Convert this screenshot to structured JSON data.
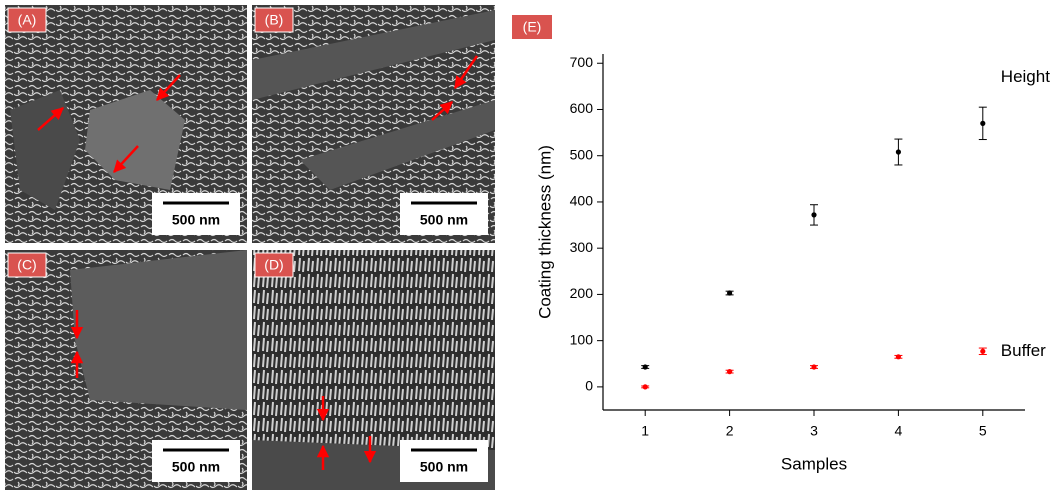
{
  "panels": [
    {
      "label": "(A)",
      "scale_bar": "500 nm"
    },
    {
      "label": "(B)",
      "scale_bar": "500 nm"
    },
    {
      "label": "(C)",
      "scale_bar": "500 nm"
    },
    {
      "label": "(D)",
      "scale_bar": "500 nm"
    }
  ],
  "chart_data": {
    "type": "scatter",
    "panel_label": "(E)",
    "xlabel": "Samples",
    "ylabel": "Coating thickness (nm)",
    "x": [
      1,
      2,
      3,
      4,
      5
    ],
    "series": [
      {
        "name": "Height",
        "color": "#000000",
        "values": [
          43,
          203,
          372,
          508,
          570
        ],
        "errors": [
          3,
          4,
          22,
          28,
          35
        ]
      },
      {
        "name": "Buffer",
        "color": "#ff0000",
        "values": [
          0,
          33,
          43,
          65,
          77
        ],
        "errors": [
          2,
          3,
          3,
          3,
          7
        ]
      }
    ],
    "xlim": [
      0.5,
      5.5
    ],
    "ylim": [
      -50,
      720
    ],
    "xticks": [
      1,
      2,
      3,
      4,
      5
    ],
    "yticks": [
      0,
      100,
      200,
      300,
      400,
      500,
      600,
      700
    ]
  }
}
